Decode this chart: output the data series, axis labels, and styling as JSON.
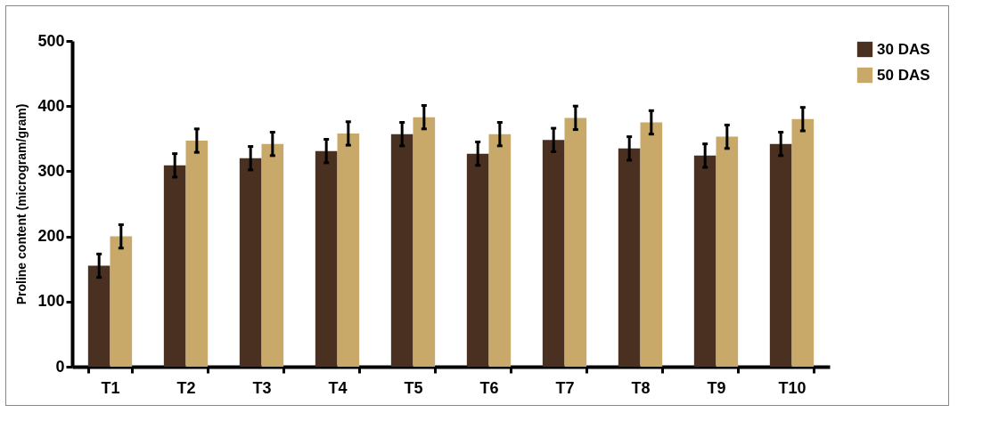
{
  "chart_data": {
    "type": "bar",
    "ylabel": "Proline content (microgram/gram)",
    "categories": [
      "T1",
      "T2",
      "T3",
      "T4",
      "T5",
      "T6",
      "T7",
      "T8",
      "T9",
      "T10"
    ],
    "series": [
      {
        "name": "30 DAS",
        "color": "#4a3020",
        "values": [
          155,
          309,
          320,
          331,
          357,
          327,
          348,
          335,
          324,
          342
        ],
        "errors": [
          18,
          18,
          18,
          18,
          18,
          18,
          18,
          18,
          18,
          18
        ]
      },
      {
        "name": "50 DAS",
        "color": "#c8a96a",
        "values": [
          200,
          347,
          342,
          358,
          383,
          357,
          382,
          375,
          353,
          380
        ],
        "errors": [
          18,
          18,
          18,
          18,
          18,
          18,
          18,
          18,
          18,
          18
        ]
      }
    ],
    "ylim": [
      0,
      500
    ],
    "yticks": [
      0,
      100,
      200,
      300,
      400,
      500
    ],
    "grid": false,
    "legend": "right"
  }
}
